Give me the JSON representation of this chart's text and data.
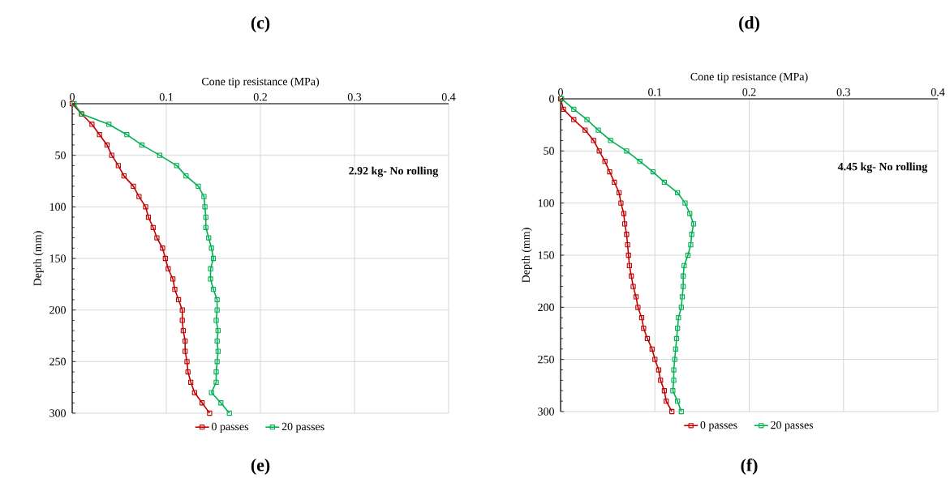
{
  "chart_data": [
    {
      "type": "line",
      "title": "(c)",
      "xlabel": "Cone tip resistance (MPa)",
      "ylabel": "Depth (mm)",
      "series": [
        {
          "name": "0 passes",
          "color": "#c00000",
          "x": [
            0,
            0.01,
            0.021,
            0.029,
            0.037,
            0.042,
            0.049,
            0.055,
            0.065,
            0.071,
            0.078,
            0.081,
            0.086,
            0.09,
            0.096,
            0.099,
            0.102,
            0.107,
            0.109,
            0.113,
            0.117,
            0.117,
            0.118,
            0.12,
            0.12,
            0.122,
            0.123,
            0.126,
            0.13,
            0.138,
            0.146
          ],
          "values": [
            0,
            10,
            20,
            30,
            40,
            50,
            60,
            70,
            80,
            90,
            100,
            110,
            120,
            130,
            140,
            150,
            160,
            170,
            180,
            190,
            200,
            210,
            220,
            230,
            240,
            250,
            260,
            270,
            280,
            290,
            300
          ]
        },
        {
          "name": "20 passes",
          "color": "#00b050",
          "x": [
            0.002,
            0.01,
            0.039,
            0.058,
            0.074,
            0.093,
            0.111,
            0.121,
            0.134,
            0.14,
            0.141,
            0.142,
            0.142,
            0.145,
            0.148,
            0.15,
            0.147,
            0.147,
            0.15,
            0.154,
            0.154,
            0.153,
            0.155,
            0.154,
            0.155,
            0.154,
            0.153,
            0.153,
            0.148,
            0.158,
            0.167
          ],
          "values": [
            0,
            10,
            20,
            30,
            40,
            50,
            60,
            70,
            80,
            90,
            100,
            110,
            120,
            130,
            140,
            150,
            160,
            170,
            180,
            190,
            200,
            210,
            220,
            230,
            240,
            250,
            260,
            270,
            280,
            290,
            300
          ]
        }
      ],
      "xlim": [
        0,
        0.4
      ],
      "xticks": [
        0,
        0.1,
        0.2,
        0.3,
        0.4
      ],
      "ylim": [
        300,
        0
      ],
      "yticks": [
        0,
        50,
        100,
        150,
        200,
        250,
        300
      ],
      "grid": true,
      "legend": "bottom",
      "marker": "square",
      "line_style": "solid",
      "annotations": [
        "2.92 kg- No rolling",
        "(e)"
      ]
    },
    {
      "type": "line",
      "title": "(d)",
      "xlabel": "Cone tip resistance (MPa)",
      "ylabel": "Depth (mm)",
      "series": [
        {
          "name": "0 passes",
          "color": "#c00000",
          "x": [
            0,
            0.003,
            0.014,
            0.026,
            0.035,
            0.041,
            0.047,
            0.052,
            0.057,
            0.062,
            0.064,
            0.067,
            0.068,
            0.07,
            0.071,
            0.072,
            0.073,
            0.075,
            0.077,
            0.08,
            0.082,
            0.086,
            0.088,
            0.092,
            0.097,
            0.1,
            0.104,
            0.106,
            0.11,
            0.112,
            0.118
          ],
          "values": [
            0,
            10,
            20,
            30,
            40,
            50,
            60,
            70,
            80,
            90,
            100,
            110,
            120,
            130,
            140,
            150,
            160,
            170,
            180,
            190,
            200,
            210,
            220,
            230,
            240,
            250,
            260,
            270,
            280,
            290,
            300
          ]
        },
        {
          "name": "20 passes",
          "color": "#00b050",
          "x": [
            0.001,
            0.014,
            0.028,
            0.04,
            0.053,
            0.07,
            0.084,
            0.098,
            0.11,
            0.124,
            0.132,
            0.137,
            0.141,
            0.139,
            0.138,
            0.135,
            0.131,
            0.13,
            0.13,
            0.129,
            0.128,
            0.125,
            0.124,
            0.123,
            0.122,
            0.121,
            0.12,
            0.12,
            0.119,
            0.124,
            0.128
          ],
          "values": [
            0,
            10,
            20,
            30,
            40,
            50,
            60,
            70,
            80,
            90,
            100,
            110,
            120,
            130,
            140,
            150,
            160,
            170,
            180,
            190,
            200,
            210,
            220,
            230,
            240,
            250,
            260,
            270,
            280,
            290,
            300
          ]
        }
      ],
      "xlim": [
        0,
        0.4
      ],
      "xticks": [
        0,
        0.1,
        0.2,
        0.3,
        0.4
      ],
      "ylim": [
        300,
        0
      ],
      "yticks": [
        0,
        50,
        100,
        150,
        200,
        250,
        300
      ],
      "grid": true,
      "legend": "bottom",
      "marker": "square",
      "line_style": "solid",
      "annotations": [
        "4.45 kg- No rolling",
        "(f)"
      ]
    }
  ]
}
